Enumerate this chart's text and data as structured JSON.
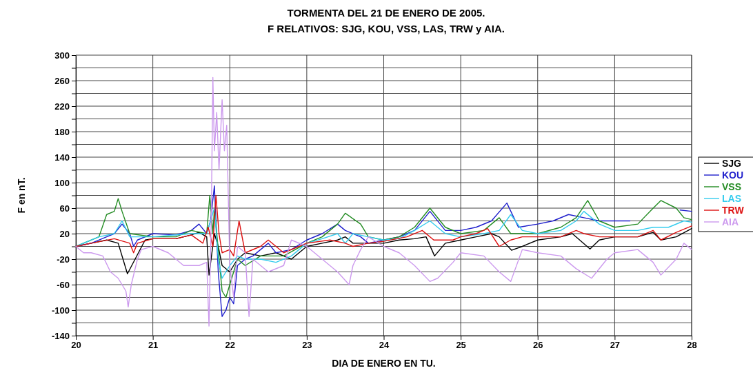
{
  "chart_data": {
    "type": "line",
    "title": "TORMENTA DEL 21 DE ENERO DE 2005.",
    "subtitle": "F RELATIVOS:  SJG, KOU, VSS, LAS, TRW y AIA.",
    "xlabel": "DIA DE ENERO  EN TU.",
    "ylabel": "F en nT.",
    "xlim": [
      20,
      28
    ],
    "xticks": [
      20,
      21,
      22,
      23,
      24,
      25,
      26,
      27,
      28
    ],
    "ylim": [
      -140,
      300
    ],
    "yticks": [
      -140,
      {
        "value": -120,
        "label": null
      },
      -100,
      {
        "value": -80,
        "label": null
      },
      -60,
      {
        "value": -40,
        "label": null
      },
      -20,
      {
        "value": 0,
        "label": null
      },
      20,
      {
        "value": 40,
        "label": null
      },
      60,
      {
        "value": 80,
        "label": null
      },
      100,
      {
        "value": 120,
        "label": null
      },
      140,
      {
        "value": 160,
        "label": null
      },
      180,
      {
        "value": 200,
        "label": null
      },
      220,
      {
        "value": 240,
        "label": null
      },
      260,
      {
        "value": 280,
        "label": null
      },
      300
    ],
    "grid": true,
    "legend": "right",
    "marker": "none",
    "line_style": "solid",
    "series": [
      {
        "name": "SJG",
        "color": "#000000",
        "x": [
          20,
          20.2,
          20.4,
          20.55,
          20.67,
          20.9,
          21,
          21.3,
          21.5,
          21.6,
          21.7,
          21.73,
          21.8,
          21.85,
          21.9,
          22,
          22.1,
          22.2,
          22.4,
          22.6,
          22.8,
          23,
          23.2,
          23.4,
          23.5,
          23.6,
          23.8,
          24,
          24.2,
          24.4,
          24.55,
          24.66,
          24.8,
          25,
          25.2,
          25.4,
          25.5,
          25.66,
          25.8,
          26,
          26.3,
          26.45,
          26.68,
          26.8,
          27,
          27.3,
          27.5,
          27.6,
          27.8,
          28
        ],
        "values": [
          0,
          5,
          10,
          5,
          -43,
          10,
          12,
          12,
          18,
          22,
          15,
          -45,
          20,
          0,
          -30,
          -40,
          -20,
          -10,
          -15,
          -10,
          -20,
          0,
          5,
          10,
          15,
          5,
          5,
          5,
          10,
          12,
          15,
          -15,
          5,
          10,
          15,
          20,
          15,
          -6,
          0,
          10,
          15,
          20,
          -4,
          10,
          15,
          15,
          22,
          10,
          15,
          28
        ]
      },
      {
        "name": "KOU",
        "color": "#1f1fcc",
        "x": [
          20,
          20.2,
          20.4,
          20.5,
          20.6,
          20.7,
          20.75,
          20.8,
          21,
          21.3,
          21.5,
          21.6,
          21.7,
          21.75,
          21.8,
          21.85,
          21.9,
          21.95,
          22,
          22.05,
          22.1,
          22.2,
          22.3,
          22.5,
          22.6,
          22.8,
          23,
          23.2,
          23.4,
          23.5,
          23.7,
          23.8,
          24,
          24.2,
          24.4,
          24.6,
          24.8,
          25,
          25.2,
          25.4,
          25.6,
          25.75,
          26,
          26.2,
          26.4,
          26.6,
          26.8,
          27,
          27.2,
          27.5,
          27.85,
          28
        ],
        "values": [
          0,
          5,
          15,
          20,
          35,
          20,
          0,
          10,
          20,
          18,
          25,
          35,
          20,
          40,
          95,
          -40,
          -110,
          -100,
          -80,
          -90,
          -30,
          -20,
          -15,
          5,
          -10,
          -5,
          10,
          20,
          35,
          25,
          15,
          5,
          10,
          15,
          25,
          55,
          25,
          25,
          30,
          40,
          68,
          30,
          35,
          40,
          50,
          45,
          40,
          40,
          40,
          null,
          57,
          55
        ]
      },
      {
        "name": "VSS",
        "color": "#228b22",
        "x": [
          20,
          20.3,
          20.4,
          20.5,
          20.55,
          20.6,
          20.7,
          21,
          21.3,
          21.5,
          21.7,
          21.74,
          21.78,
          21.8,
          21.9,
          21.95,
          22,
          22.1,
          22.2,
          22.4,
          22.7,
          23,
          23.2,
          23.4,
          23.5,
          23.7,
          23.8,
          24,
          24.2,
          24.4,
          24.6,
          24.8,
          25,
          25.3,
          25.5,
          25.65,
          25.8,
          26,
          26.3,
          26.5,
          26.65,
          26.8,
          27,
          27.3,
          27.5,
          27.6,
          27.8,
          27.9,
          28
        ],
        "values": [
          0,
          15,
          50,
          55,
          75,
          55,
          20,
          15,
          15,
          25,
          20,
          80,
          20,
          60,
          -70,
          -80,
          -60,
          -20,
          -30,
          -15,
          -15,
          5,
          15,
          35,
          52,
          35,
          15,
          10,
          15,
          30,
          60,
          30,
          20,
          25,
          45,
          20,
          20,
          20,
          30,
          45,
          72,
          40,
          30,
          35,
          60,
          72,
          60,
          45,
          42
        ]
      },
      {
        "name": "LAS",
        "color": "#33ccee",
        "x": [
          20,
          20.3,
          20.5,
          20.6,
          20.7,
          21,
          21.5,
          21.7,
          21.8,
          21.85,
          21.9,
          22,
          22.1,
          22.2,
          22.4,
          22.6,
          22.8,
          23,
          23.2,
          23.4,
          23.5,
          23.6,
          23.8,
          24,
          24.2,
          24.4,
          24.6,
          24.8,
          25,
          25.3,
          25.5,
          25.65,
          25.8,
          26,
          26.3,
          26.5,
          26.6,
          26.8,
          27,
          27.3,
          27.5,
          27.7,
          27.9,
          28
        ],
        "values": [
          0,
          15,
          20,
          40,
          15,
          15,
          20,
          20,
          60,
          -20,
          -50,
          -30,
          -15,
          -20,
          -20,
          -25,
          -15,
          5,
          12,
          20,
          5,
          20,
          15,
          10,
          12,
          25,
          40,
          20,
          15,
          20,
          25,
          50,
          25,
          20,
          25,
          40,
          55,
          35,
          25,
          25,
          30,
          30,
          40,
          38
        ]
      },
      {
        "name": "TRW",
        "color": "#dd1111",
        "x": [
          20,
          20.2,
          20.5,
          20.7,
          20.75,
          20.8,
          21,
          21.3,
          21.5,
          21.65,
          21.72,
          21.78,
          21.82,
          21.86,
          21.9,
          22,
          22.05,
          22.12,
          22.2,
          22.4,
          22.5,
          22.7,
          23,
          23.3,
          23.5,
          23.6,
          23.8,
          24,
          24.3,
          24.5,
          24.65,
          24.9,
          25,
          25.2,
          25.35,
          25.5,
          25.65,
          25.8,
          26,
          26.3,
          26.5,
          26.6,
          26.8,
          27,
          27.3,
          27.5,
          27.6,
          27.8,
          28
        ],
        "values": [
          0,
          5,
          12,
          5,
          -10,
          5,
          12,
          12,
          18,
          5,
          30,
          0,
          80,
          20,
          -10,
          -5,
          -15,
          40,
          -10,
          0,
          10,
          -10,
          5,
          10,
          5,
          0,
          5,
          8,
          15,
          25,
          10,
          10,
          15,
          20,
          28,
          0,
          10,
          15,
          15,
          15,
          25,
          20,
          15,
          15,
          15,
          25,
          10,
          22,
          32
        ]
      },
      {
        "name": "AIA",
        "color": "#cc99ee",
        "x": [
          20,
          20.1,
          20.2,
          20.35,
          20.45,
          20.55,
          20.65,
          20.68,
          20.72,
          20.8,
          20.85,
          21,
          21.2,
          21.4,
          21.5,
          21.6,
          21.7,
          21.73,
          21.76,
          21.78,
          21.8,
          21.83,
          21.86,
          21.9,
          21.93,
          21.96,
          22,
          22.05,
          22.1,
          22.2,
          22.25,
          22.3,
          22.5,
          22.7,
          22.8,
          23,
          23.2,
          23.4,
          23.55,
          23.6,
          23.7,
          23.8,
          24,
          24.2,
          24.4,
          24.6,
          24.7,
          24.9,
          25,
          25.3,
          25.5,
          25.65,
          25.8,
          26,
          26.3,
          26.5,
          26.7,
          26.9,
          27,
          27.3,
          27.5,
          27.6,
          27.8,
          27.9,
          28
        ],
        "values": [
          0,
          -10,
          -10,
          -15,
          -40,
          -50,
          -70,
          -95,
          -60,
          -20,
          -5,
          0,
          -10,
          -30,
          -30,
          -30,
          -25,
          -125,
          50,
          265,
          150,
          210,
          120,
          230,
          150,
          190,
          -30,
          -80,
          0,
          -10,
          -110,
          -20,
          -40,
          -30,
          10,
          0,
          -20,
          -40,
          -60,
          -30,
          -5,
          15,
          0,
          -10,
          -30,
          -55,
          -50,
          -25,
          -10,
          -15,
          -40,
          -55,
          -5,
          -10,
          -15,
          -35,
          -50,
          -20,
          -10,
          -5,
          -25,
          -45,
          -20,
          5,
          -5
        ]
      }
    ]
  }
}
